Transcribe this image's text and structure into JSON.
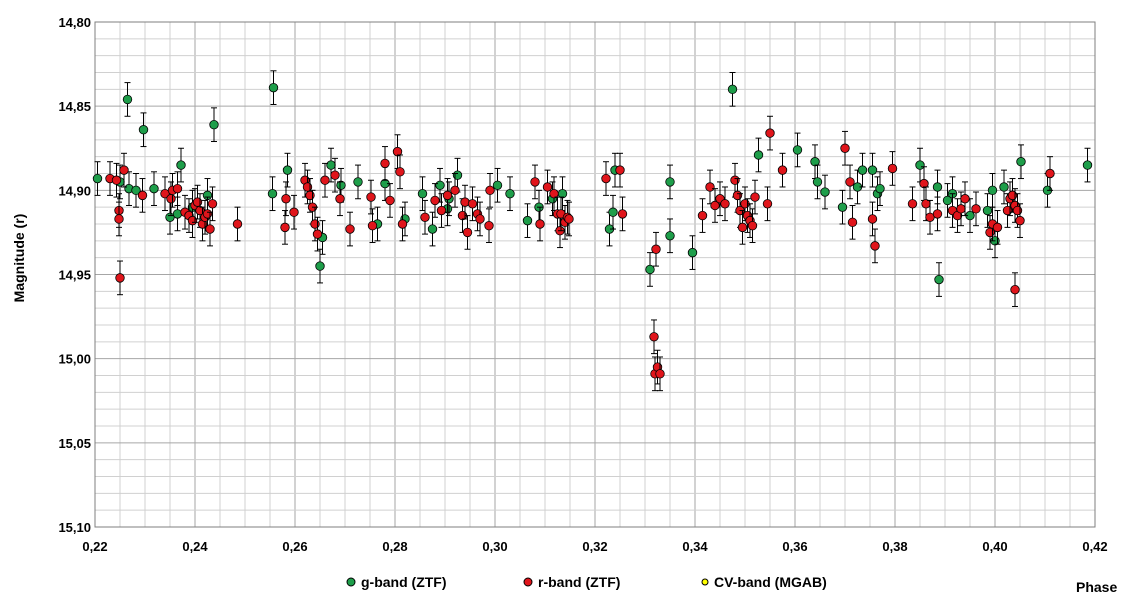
{
  "chart_data": {
    "type": "scatter",
    "xlabel": "Phase",
    "ylabel": "Magnitude (r)",
    "xlim": [
      0.22,
      0.42
    ],
    "ylim": [
      14.8,
      15.1
    ],
    "y_inverted": true,
    "x_ticks": [
      "0,22",
      "0,24",
      "0,26",
      "0,28",
      "0,30",
      "0,32",
      "0,34",
      "0,36",
      "0,38",
      "0,40",
      "0,42"
    ],
    "y_ticks": [
      "14,80",
      "14,85",
      "14,90",
      "14,95",
      "15,00",
      "15,05",
      "15,10"
    ],
    "grid": true,
    "legend_position": "bottom",
    "series": [
      {
        "name": "g-band (ZTF)",
        "color": "#1e9e4a",
        "error": 0.01,
        "points": [
          [
            0.2205,
            14.893
          ],
          [
            0.225,
            14.895
          ],
          [
            0.2265,
            14.846
          ],
          [
            0.2268,
            14.899
          ],
          [
            0.2282,
            14.9
          ],
          [
            0.2297,
            14.864
          ],
          [
            0.2318,
            14.899
          ],
          [
            0.235,
            14.916
          ],
          [
            0.2365,
            14.914
          ],
          [
            0.2372,
            14.885
          ],
          [
            0.2395,
            14.91
          ],
          [
            0.2425,
            14.903
          ],
          [
            0.2438,
            14.861
          ],
          [
            0.2555,
            14.902
          ],
          [
            0.2557,
            14.839
          ],
          [
            0.2585,
            14.888
          ],
          [
            0.2655,
            14.928
          ],
          [
            0.2672,
            14.885
          ],
          [
            0.2692,
            14.897
          ],
          [
            0.2726,
            14.895
          ],
          [
            0.2765,
            14.92
          ],
          [
            0.265,
            14.945
          ],
          [
            0.278,
            14.896
          ],
          [
            0.282,
            14.917
          ],
          [
            0.2855,
            14.902
          ],
          [
            0.2875,
            14.923
          ],
          [
            0.289,
            14.897
          ],
          [
            0.2905,
            14.911
          ],
          [
            0.2908,
            14.905
          ],
          [
            0.2925,
            14.891
          ],
          [
            0.3005,
            14.897
          ],
          [
            0.303,
            14.902
          ],
          [
            0.3065,
            14.918
          ],
          [
            0.3088,
            14.91
          ],
          [
            0.3115,
            14.905
          ],
          [
            0.3135,
            14.902
          ],
          [
            0.3229,
            14.923
          ],
          [
            0.3236,
            14.913
          ],
          [
            0.324,
            14.888
          ],
          [
            0.331,
            14.947
          ],
          [
            0.335,
            14.895
          ],
          [
            0.335,
            14.927
          ],
          [
            0.3395,
            14.937
          ],
          [
            0.3475,
            14.84
          ],
          [
            0.3527,
            14.879
          ],
          [
            0.3605,
            14.876
          ],
          [
            0.364,
            14.883
          ],
          [
            0.3645,
            14.895
          ],
          [
            0.366,
            14.901
          ],
          [
            0.3695,
            14.91
          ],
          [
            0.3725,
            14.898
          ],
          [
            0.3735,
            14.888
          ],
          [
            0.3755,
            14.888
          ],
          [
            0.3765,
            14.902
          ],
          [
            0.377,
            14.899
          ],
          [
            0.385,
            14.885
          ],
          [
            0.3888,
            14.953
          ],
          [
            0.3885,
            14.898
          ],
          [
            0.3905,
            14.906
          ],
          [
            0.3915,
            14.902
          ],
          [
            0.395,
            14.915
          ],
          [
            0.3985,
            14.912
          ],
          [
            0.3995,
            14.9
          ],
          [
            0.4,
            14.93
          ],
          [
            0.4018,
            14.898
          ],
          [
            0.4052,
            14.883
          ],
          [
            0.4105,
            14.9
          ],
          [
            0.4185,
            14.885
          ]
        ]
      },
      {
        "name": "r-band (ZTF)",
        "color": "#e0151b",
        "error": 0.01,
        "points": [
          [
            0.223,
            14.893
          ],
          [
            0.2243,
            14.894
          ],
          [
            0.2248,
            14.912
          ],
          [
            0.2248,
            14.917
          ],
          [
            0.225,
            14.952
          ],
          [
            0.2258,
            14.888
          ],
          [
            0.2295,
            14.903
          ],
          [
            0.234,
            14.902
          ],
          [
            0.2352,
            14.905
          ],
          [
            0.2355,
            14.9
          ],
          [
            0.2365,
            14.899
          ],
          [
            0.238,
            14.913
          ],
          [
            0.2388,
            14.915
          ],
          [
            0.2395,
            14.918
          ],
          [
            0.24,
            14.909
          ],
          [
            0.2405,
            14.907
          ],
          [
            0.241,
            14.912
          ],
          [
            0.2415,
            14.92
          ],
          [
            0.242,
            14.916
          ],
          [
            0.2425,
            14.914
          ],
          [
            0.243,
            14.923
          ],
          [
            0.2435,
            14.908
          ],
          [
            0.2485,
            14.92
          ],
          [
            0.258,
            14.922
          ],
          [
            0.2582,
            14.905
          ],
          [
            0.2598,
            14.913
          ],
          [
            0.262,
            14.894
          ],
          [
            0.2625,
            14.898
          ],
          [
            0.263,
            14.903
          ],
          [
            0.2635,
            14.91
          ],
          [
            0.264,
            14.92
          ],
          [
            0.2645,
            14.926
          ],
          [
            0.266,
            14.894
          ],
          [
            0.268,
            14.891
          ],
          [
            0.269,
            14.905
          ],
          [
            0.271,
            14.923
          ],
          [
            0.2752,
            14.904
          ],
          [
            0.2755,
            14.921
          ],
          [
            0.278,
            14.884
          ],
          [
            0.279,
            14.906
          ],
          [
            0.2805,
            14.877
          ],
          [
            0.281,
            14.889
          ],
          [
            0.2815,
            14.92
          ],
          [
            0.286,
            14.916
          ],
          [
            0.288,
            14.906
          ],
          [
            0.2893,
            14.912
          ],
          [
            0.2905,
            14.903
          ],
          [
            0.292,
            14.9
          ],
          [
            0.2935,
            14.915
          ],
          [
            0.294,
            14.907
          ],
          [
            0.2945,
            14.925
          ],
          [
            0.2955,
            14.908
          ],
          [
            0.2965,
            14.914
          ],
          [
            0.297,
            14.917
          ],
          [
            0.2988,
            14.921
          ],
          [
            0.299,
            14.9
          ],
          [
            0.308,
            14.895
          ],
          [
            0.309,
            14.92
          ],
          [
            0.3105,
            14.898
          ],
          [
            0.3118,
            14.902
          ],
          [
            0.3125,
            14.914
          ],
          [
            0.313,
            14.924
          ],
          [
            0.3132,
            14.914
          ],
          [
            0.314,
            14.919
          ],
          [
            0.3145,
            14.916
          ],
          [
            0.3148,
            14.917
          ],
          [
            0.3222,
            14.893
          ],
          [
            0.325,
            14.888
          ],
          [
            0.3255,
            14.914
          ],
          [
            0.3318,
            14.987
          ],
          [
            0.332,
            15.009
          ],
          [
            0.3322,
            14.935
          ],
          [
            0.3325,
            15.005
          ],
          [
            0.333,
            15.009
          ],
          [
            0.3415,
            14.915
          ],
          [
            0.343,
            14.898
          ],
          [
            0.344,
            14.909
          ],
          [
            0.345,
            14.905
          ],
          [
            0.346,
            14.908
          ],
          [
            0.348,
            14.894
          ],
          [
            0.3485,
            14.903
          ],
          [
            0.349,
            14.912
          ],
          [
            0.3495,
            14.922
          ],
          [
            0.35,
            14.908
          ],
          [
            0.3505,
            14.915
          ],
          [
            0.351,
            14.918
          ],
          [
            0.3515,
            14.921
          ],
          [
            0.352,
            14.904
          ],
          [
            0.3545,
            14.908
          ],
          [
            0.355,
            14.866
          ],
          [
            0.3575,
            14.888
          ],
          [
            0.37,
            14.875
          ],
          [
            0.371,
            14.895
          ],
          [
            0.3715,
            14.919
          ],
          [
            0.3755,
            14.917
          ],
          [
            0.376,
            14.933
          ],
          [
            0.3795,
            14.887
          ],
          [
            0.3835,
            14.908
          ],
          [
            0.3858,
            14.896
          ],
          [
            0.3862,
            14.908
          ],
          [
            0.387,
            14.916
          ],
          [
            0.3885,
            14.914
          ],
          [
            0.3915,
            14.912
          ],
          [
            0.3925,
            14.915
          ],
          [
            0.3932,
            14.911
          ],
          [
            0.394,
            14.905
          ],
          [
            0.3962,
            14.911
          ],
          [
            0.399,
            14.925
          ],
          [
            0.3995,
            14.92
          ],
          [
            0.4005,
            14.922
          ],
          [
            0.4025,
            14.912
          ],
          [
            0.403,
            14.905
          ],
          [
            0.4035,
            14.903
          ],
          [
            0.404,
            14.909
          ],
          [
            0.4045,
            14.912
          ],
          [
            0.404,
            14.959
          ],
          [
            0.405,
            14.918
          ],
          [
            0.411,
            14.89
          ]
        ]
      },
      {
        "name": "CV-band (MGAB)",
        "color": "#ffff00",
        "error": 0.01,
        "points": []
      }
    ]
  }
}
